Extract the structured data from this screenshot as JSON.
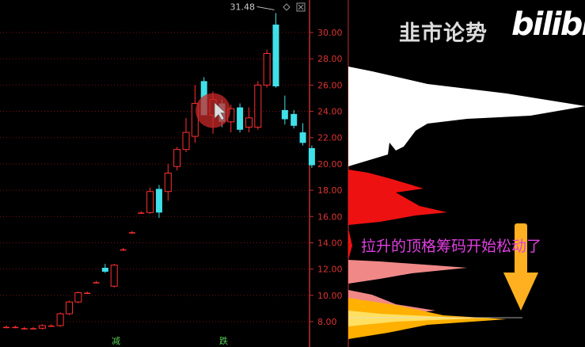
{
  "chart": {
    "price_axis": {
      "min": 7.0,
      "max": 31.0,
      "ticks": [
        "30.00",
        "28.00",
        "26.00",
        "24.00",
        "22.00",
        "20.00",
        "18.00",
        "16.00",
        "14.00",
        "12.00",
        "10.00",
        "8.00"
      ]
    },
    "peak_label": "31.48",
    "bottom_markers": [
      "减",
      "跌"
    ],
    "colors": {
      "up": "#ff3030",
      "down": "#40e0e8",
      "grid": "#7a1010",
      "axis": "#c03030",
      "profile_upper": "#ffffff",
      "profile_mid": "#ee1111",
      "profile_low": "#f08888",
      "profile_base": "#ffb000",
      "arrow": "#ffb020"
    }
  },
  "chart_data": {
    "type": "candlestick",
    "candles": [
      {
        "o": 7.6,
        "c": 7.6,
        "h": 7.7,
        "l": 7.5
      },
      {
        "o": 7.6,
        "c": 7.6,
        "h": 7.7,
        "l": 7.5
      },
      {
        "o": 7.5,
        "c": 7.5,
        "h": 7.6,
        "l": 7.4
      },
      {
        "o": 7.5,
        "c": 7.5,
        "h": 7.6,
        "l": 7.4
      },
      {
        "o": 7.5,
        "c": 7.7,
        "h": 7.8,
        "l": 7.4
      },
      {
        "o": 7.7,
        "c": 7.7,
        "h": 7.8,
        "l": 7.6
      },
      {
        "o": 7.7,
        "c": 8.6,
        "h": 8.7,
        "l": 7.6
      },
      {
        "o": 8.6,
        "c": 9.5,
        "h": 9.6,
        "l": 8.5
      },
      {
        "o": 9.5,
        "c": 10.2,
        "h": 10.3,
        "l": 9.4
      },
      {
        "o": 10.2,
        "c": 10.2,
        "h": 10.3,
        "l": 10.1
      },
      {
        "o": 11.0,
        "c": 11.0,
        "h": 11.1,
        "l": 10.9
      },
      {
        "o": 12.1,
        "c": 11.8,
        "h": 12.4,
        "l": 11.7
      },
      {
        "o": 10.7,
        "c": 12.3,
        "h": 12.4,
        "l": 10.6
      },
      {
        "o": 13.5,
        "c": 13.5,
        "h": 13.6,
        "l": 13.4
      },
      {
        "o": 14.8,
        "c": 14.8,
        "h": 14.9,
        "l": 14.7
      },
      {
        "o": 16.3,
        "c": 16.3,
        "h": 16.4,
        "l": 16.2
      },
      {
        "o": 16.3,
        "c": 17.9,
        "h": 18.2,
        "l": 16.2
      },
      {
        "o": 18.1,
        "c": 16.3,
        "h": 18.4,
        "l": 15.9
      },
      {
        "o": 17.9,
        "c": 19.3,
        "h": 20.0,
        "l": 17.2
      },
      {
        "o": 19.8,
        "c": 21.1,
        "h": 21.3,
        "l": 19.5
      },
      {
        "o": 21.1,
        "c": 22.4,
        "h": 23.5,
        "l": 20.9
      },
      {
        "o": 22.1,
        "c": 24.6,
        "h": 26.0,
        "l": 21.6
      },
      {
        "o": 26.3,
        "c": 23.7,
        "h": 26.6,
        "l": 23.7
      },
      {
        "o": 23.7,
        "c": 24.9,
        "h": 25.5,
        "l": 22.3
      },
      {
        "o": 24.6,
        "c": 23.2,
        "h": 24.9,
        "l": 22.8
      },
      {
        "o": 23.2,
        "c": 24.2,
        "h": 24.5,
        "l": 22.4
      },
      {
        "o": 24.3,
        "c": 22.6,
        "h": 24.6,
        "l": 22.4
      },
      {
        "o": 22.8,
        "c": 23.5,
        "h": 24.3,
        "l": 22.4
      },
      {
        "o": 22.8,
        "c": 26.0,
        "h": 26.3,
        "l": 22.6
      },
      {
        "o": 26.0,
        "c": 28.4,
        "h": 28.7,
        "l": 25.8
      },
      {
        "o": 30.6,
        "c": 25.9,
        "h": 31.48,
        "l": 25.8
      },
      {
        "o": 24.1,
        "c": 23.4,
        "h": 25.2,
        "l": 23.0
      },
      {
        "o": 23.8,
        "c": 22.9,
        "h": 24.1,
        "l": 22.7
      },
      {
        "o": 22.4,
        "c": 21.6,
        "h": 23.1,
        "l": 21.4
      },
      {
        "o": 21.2,
        "c": 19.9,
        "h": 21.4,
        "l": 19.7
      }
    ],
    "highlight_candle_index": 23
  },
  "overlay": {
    "watermark": "韭市论势",
    "logo": "bilibili",
    "annotation": "拉升的顶格筹码开始松动了"
  }
}
